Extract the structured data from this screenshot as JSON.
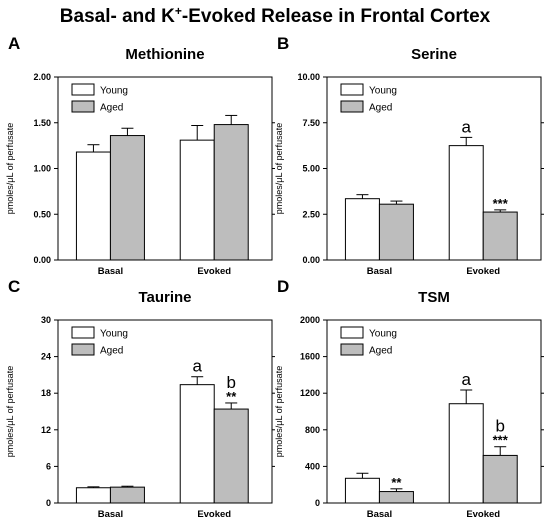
{
  "figure": {
    "title_main": "Basal- and K",
    "title_sup": "+",
    "title_rest": "-Evoked Release in Frontal Cortex",
    "ylabel": "pmoles/μL of perfusate",
    "legend": [
      "Young",
      "Aged"
    ],
    "colors": {
      "young": "#ffffff",
      "aged": "#bdbdbd",
      "stroke": "#000000"
    }
  },
  "chart_data": [
    {
      "panel": "A",
      "type": "bar",
      "title": "Methionine",
      "categories": [
        "Basal",
        "Evoked"
      ],
      "series": [
        {
          "name": "Young",
          "values": [
            1.18,
            1.31
          ],
          "errors": [
            0.08,
            0.16
          ]
        },
        {
          "name": "Aged",
          "values": [
            1.36,
            1.48
          ],
          "errors": [
            0.08,
            0.1
          ]
        }
      ],
      "ylim": [
        0,
        2.0
      ],
      "yticks": [
        "0.00",
        "0.50",
        "1.00",
        "1.50",
        "2.00"
      ],
      "annotations": []
    },
    {
      "panel": "B",
      "type": "bar",
      "title": "Serine",
      "categories": [
        "Basal",
        "Evoked"
      ],
      "series": [
        {
          "name": "Young",
          "values": [
            3.35,
            6.25
          ],
          "errors": [
            0.22,
            0.45
          ]
        },
        {
          "name": "Aged",
          "values": [
            3.05,
            2.62
          ],
          "errors": [
            0.17,
            0.12
          ]
        }
      ],
      "ylim": [
        0,
        10
      ],
      "yticks": [
        "0.00",
        "2.50",
        "5.00",
        "7.50",
        "10.00"
      ],
      "annotations": [
        {
          "series": 0,
          "category": 1,
          "label": "a",
          "style": "letter"
        },
        {
          "series": 1,
          "category": 1,
          "label": "***",
          "style": "star"
        }
      ]
    },
    {
      "panel": "C",
      "type": "bar",
      "title": "Taurine",
      "categories": [
        "Basal",
        "Evoked"
      ],
      "series": [
        {
          "name": "Young",
          "values": [
            2.5,
            19.4
          ],
          "errors": [
            0.15,
            1.3
          ]
        },
        {
          "name": "Aged",
          "values": [
            2.6,
            15.4
          ],
          "errors": [
            0.15,
            1.0
          ]
        }
      ],
      "ylim": [
        0,
        30
      ],
      "yticks": [
        "0",
        "6",
        "12",
        "18",
        "24",
        "30"
      ],
      "annotations": [
        {
          "series": 0,
          "category": 1,
          "label": "a",
          "style": "letter"
        },
        {
          "series": 1,
          "category": 1,
          "label": "b",
          "style": "letter"
        },
        {
          "series": 1,
          "category": 1,
          "label": "**",
          "style": "star"
        }
      ]
    },
    {
      "panel": "D",
      "type": "bar",
      "title": "TSM",
      "categories": [
        "Basal",
        "Evoked"
      ],
      "series": [
        {
          "name": "Young",
          "values": [
            270,
            1085
          ],
          "errors": [
            55,
            150
          ]
        },
        {
          "name": "Aged",
          "values": [
            125,
            520
          ],
          "errors": [
            30,
            95
          ]
        }
      ],
      "ylim": [
        0,
        2000
      ],
      "yticks": [
        "0",
        "400",
        "800",
        "1200",
        "1600",
        "2000"
      ],
      "annotations": [
        {
          "series": 1,
          "category": 0,
          "label": "**",
          "style": "star"
        },
        {
          "series": 0,
          "category": 1,
          "label": "a",
          "style": "letter"
        },
        {
          "series": 1,
          "category": 1,
          "label": "b",
          "style": "letter"
        },
        {
          "series": 1,
          "category": 1,
          "label": "***",
          "style": "star"
        }
      ]
    }
  ]
}
